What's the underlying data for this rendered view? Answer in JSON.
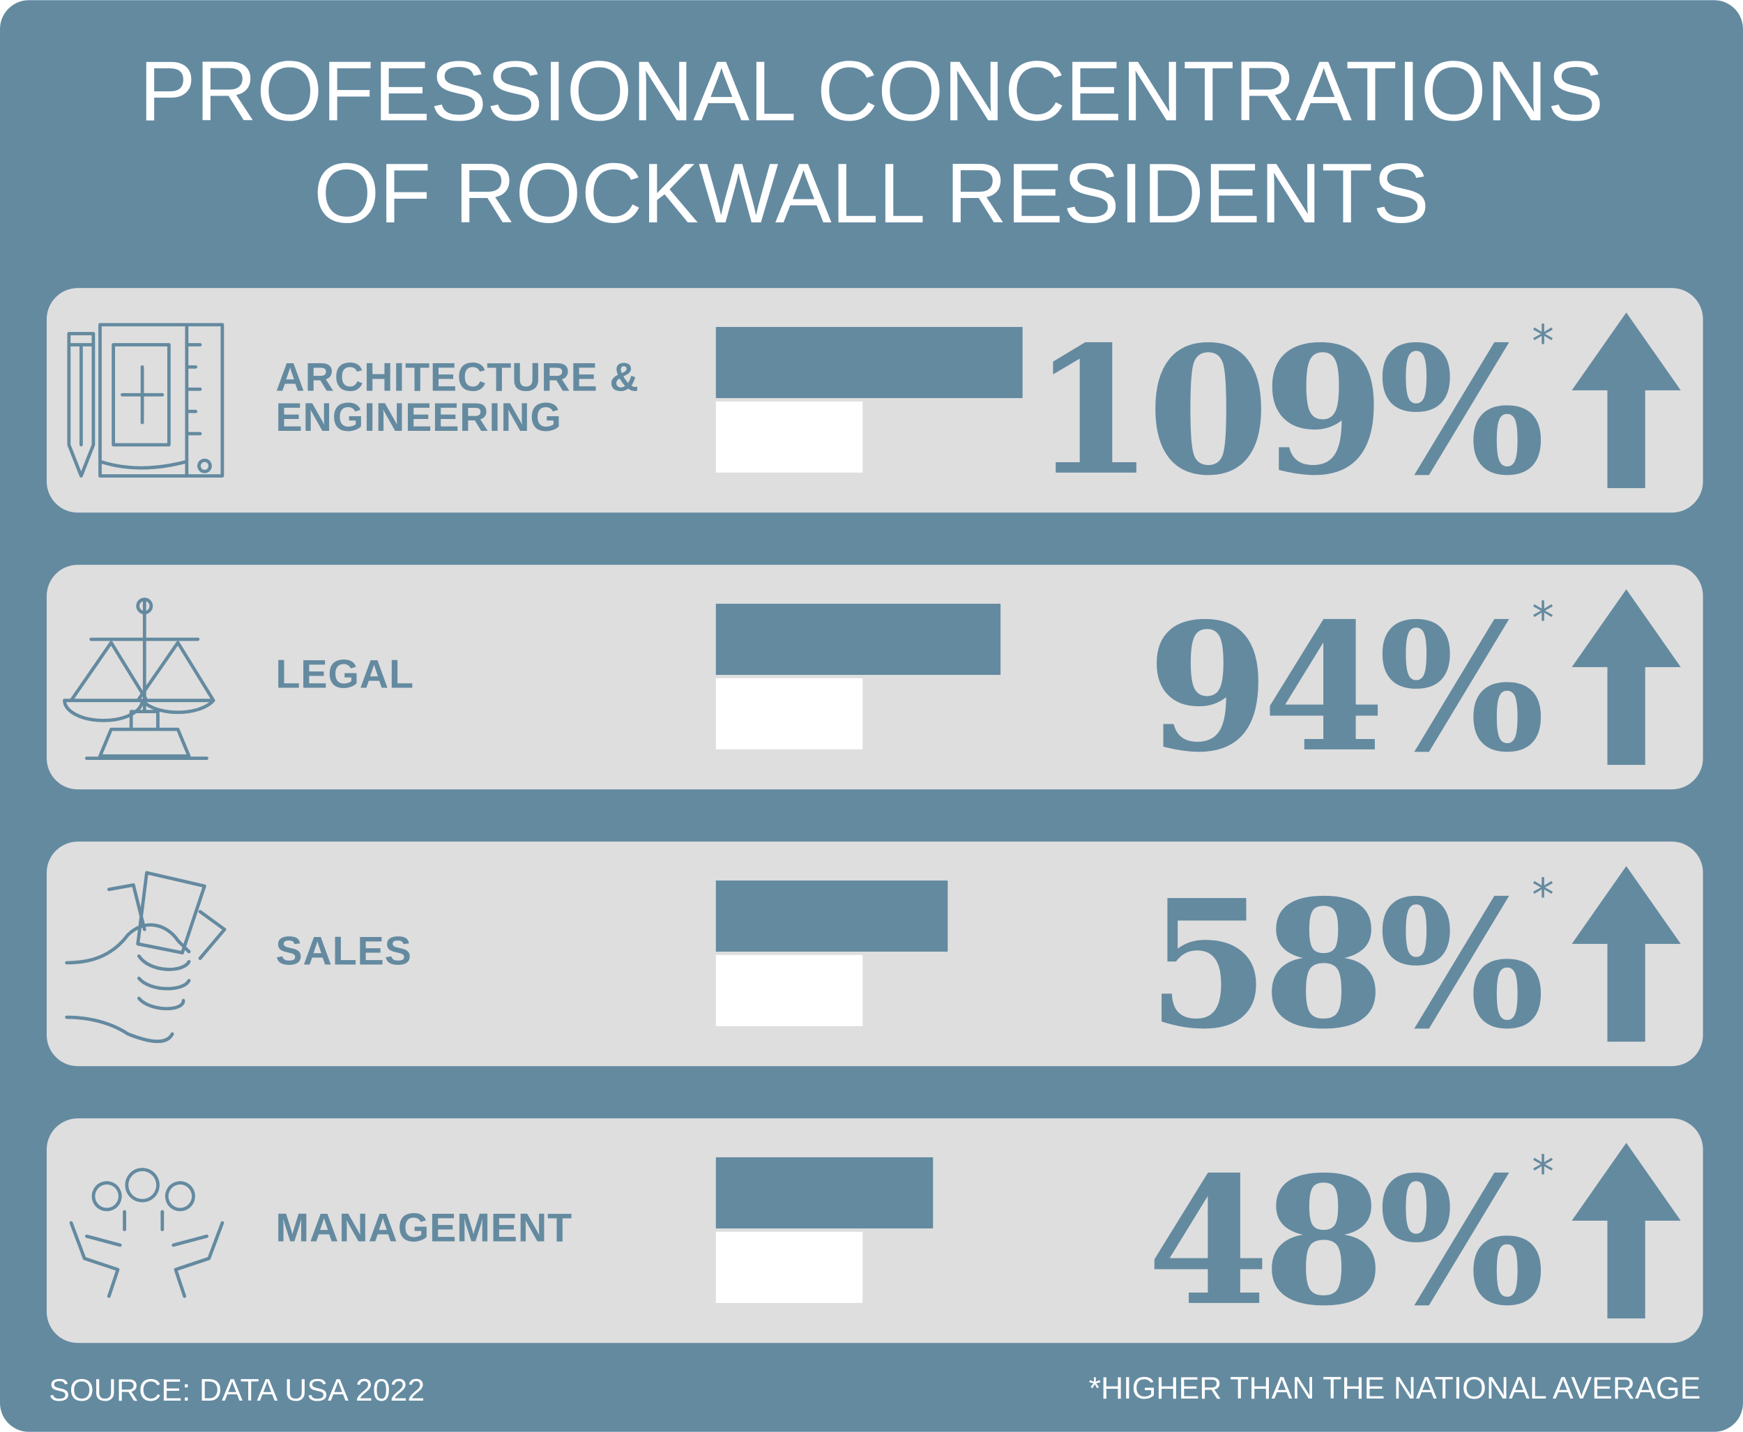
{
  "chart_data": {
    "type": "bar",
    "title": [
      "PROFESSIONAL CONCENTRATIONS",
      "OF ROCKWALL RESIDENTS"
    ],
    "categories": [
      [
        "ARCHITECTURE &",
        "ENGINEERING"
      ],
      [
        "LEGAL"
      ],
      [
        "SALES"
      ],
      [
        "MANAGEMENT"
      ]
    ],
    "values": [
      109,
      94,
      58,
      48
    ],
    "value_labels": [
      "109%",
      "94%",
      "58%",
      "48%"
    ],
    "value_mark": "*",
    "color": "#648aa0",
    "source": "SOURCE: DATA USA 2022",
    "note": "*HIGHER THAN THE NATIONAL AVERAGE"
  }
}
